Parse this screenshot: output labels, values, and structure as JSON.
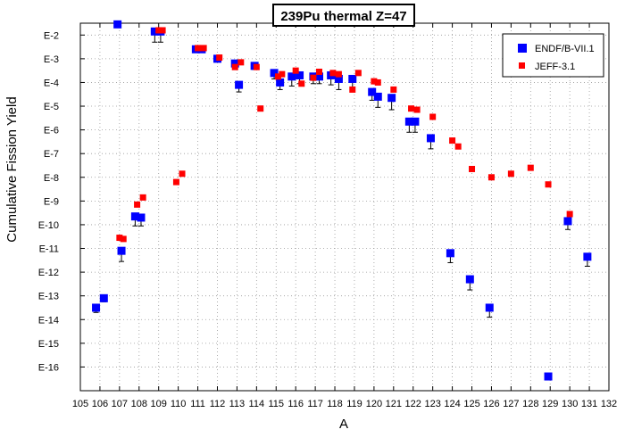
{
  "chart_data": {
    "type": "scatter",
    "title": "239Pu thermal Z=47",
    "xlabel": "A",
    "ylabel": "Cumulative Fission Yield",
    "x_range": [
      105,
      132
    ],
    "x_ticks": [
      105,
      106,
      107,
      108,
      109,
      110,
      111,
      112,
      113,
      114,
      115,
      116,
      117,
      118,
      119,
      120,
      121,
      122,
      123,
      124,
      125,
      126,
      127,
      128,
      129,
      130,
      131,
      132
    ],
    "y_scale": "log",
    "y_range_log10": [
      -17,
      -1.5
    ],
    "y_ticks": [
      {
        "exp": -2,
        "label": "E-2"
      },
      {
        "exp": -3,
        "label": "E-3"
      },
      {
        "exp": -4,
        "label": "E-4"
      },
      {
        "exp": -5,
        "label": "E-5"
      },
      {
        "exp": -6,
        "label": "E-6"
      },
      {
        "exp": -7,
        "label": "E-7"
      },
      {
        "exp": -8,
        "label": "E-8"
      },
      {
        "exp": -9,
        "label": "E-9"
      },
      {
        "exp": -10,
        "label": "E-10"
      },
      {
        "exp": -11,
        "label": "E-11"
      },
      {
        "exp": -12,
        "label": "E-12"
      },
      {
        "exp": -13,
        "label": "E-13"
      },
      {
        "exp": -14,
        "label": "E-14"
      },
      {
        "exp": -15,
        "label": "E-15"
      },
      {
        "exp": -16,
        "label": "E-16"
      }
    ],
    "grid": "dotted",
    "legend_position": "top-right",
    "series": [
      {
        "name": "ENDF/B-VII.1",
        "color": "#0000ff",
        "marker": "square",
        "points": [
          {
            "a": 105.8,
            "log10y": -13.5,
            "err": 0.2
          },
          {
            "a": 106.2,
            "log10y": -13.1,
            "err": 0.15
          },
          {
            "a": 106.9,
            "log10y": -1.55,
            "err": 0
          },
          {
            "a": 107.1,
            "log10y": -11.1,
            "err": 0.45
          },
          {
            "a": 107.8,
            "log10y": -9.65,
            "err": 0.4
          },
          {
            "a": 108.1,
            "log10y": -9.7,
            "err": 0.35
          },
          {
            "a": 108.8,
            "log10y": -1.85,
            "err": 0.45
          },
          {
            "a": 109.1,
            "log10y": -1.85,
            "err": 0.45
          },
          {
            "a": 110.9,
            "log10y": -2.6,
            "err": 0.1
          },
          {
            "a": 111.2,
            "log10y": -2.6,
            "err": 0.1
          },
          {
            "a": 112.0,
            "log10y": -3.0,
            "err": 0.1
          },
          {
            "a": 112.9,
            "log10y": -3.2,
            "err": 0.2
          },
          {
            "a": 113.1,
            "log10y": -4.1,
            "err": 0.3
          },
          {
            "a": 113.9,
            "log10y": -3.3,
            "err": 0.15
          },
          {
            "a": 114.9,
            "log10y": -3.6,
            "err": 0.25
          },
          {
            "a": 115.2,
            "log10y": -4.0,
            "err": 0.3
          },
          {
            "a": 115.8,
            "log10y": -3.75,
            "err": 0.4
          },
          {
            "a": 116.2,
            "log10y": -3.7,
            "err": 0.35
          },
          {
            "a": 116.9,
            "log10y": -3.75,
            "err": 0.3
          },
          {
            "a": 117.2,
            "log10y": -3.75,
            "err": 0.3
          },
          {
            "a": 117.8,
            "log10y": -3.7,
            "err": 0.4
          },
          {
            "a": 118.2,
            "log10y": -3.85,
            "err": 0.45
          },
          {
            "a": 118.9,
            "log10y": -3.85,
            "err": 0.45
          },
          {
            "a": 119.9,
            "log10y": -4.4,
            "err": 0.35
          },
          {
            "a": 120.2,
            "log10y": -4.6,
            "err": 0.45
          },
          {
            "a": 120.9,
            "log10y": -4.65,
            "err": 0.5
          },
          {
            "a": 121.8,
            "log10y": -5.65,
            "err": 0.45
          },
          {
            "a": 122.1,
            "log10y": -5.65,
            "err": 0.45
          },
          {
            "a": 122.9,
            "log10y": -6.35,
            "err": 0.45
          },
          {
            "a": 123.9,
            "log10y": -11.2,
            "err": 0.4
          },
          {
            "a": 124.9,
            "log10y": -12.3,
            "err": 0.45
          },
          {
            "a": 125.9,
            "log10y": -13.5,
            "err": 0.4
          },
          {
            "a": 128.9,
            "log10y": -16.4,
            "err": 0
          },
          {
            "a": 129.9,
            "log10y": -9.85,
            "err": 0.35
          },
          {
            "a": 130.9,
            "log10y": -11.35,
            "err": 0.4
          }
        ]
      },
      {
        "name": "JEFF-3.1",
        "color": "#ff0000",
        "marker": "square",
        "points": [
          {
            "a": 107.0,
            "log10y": -10.55
          },
          {
            "a": 107.2,
            "log10y": -10.6
          },
          {
            "a": 107.9,
            "log10y": -9.15
          },
          {
            "a": 108.2,
            "log10y": -8.85
          },
          {
            "a": 109.0,
            "log10y": -1.8
          },
          {
            "a": 109.2,
            "log10y": -1.8
          },
          {
            "a": 109.9,
            "log10y": -8.2
          },
          {
            "a": 110.2,
            "log10y": -7.85
          },
          {
            "a": 111.0,
            "log10y": -2.55
          },
          {
            "a": 111.3,
            "log10y": -2.55
          },
          {
            "a": 112.1,
            "log10y": -2.95
          },
          {
            "a": 112.9,
            "log10y": -3.35
          },
          {
            "a": 113.2,
            "log10y": -3.15
          },
          {
            "a": 114.0,
            "log10y": -3.35
          },
          {
            "a": 114.2,
            "log10y": -5.1
          },
          {
            "a": 115.1,
            "log10y": -3.75
          },
          {
            "a": 115.3,
            "log10y": -3.65
          },
          {
            "a": 116.0,
            "log10y": -3.5
          },
          {
            "a": 116.3,
            "log10y": -4.05
          },
          {
            "a": 116.9,
            "log10y": -3.8
          },
          {
            "a": 117.2,
            "log10y": -3.55
          },
          {
            "a": 117.9,
            "log10y": -3.6
          },
          {
            "a": 118.2,
            "log10y": -3.65
          },
          {
            "a": 118.9,
            "log10y": -4.3
          },
          {
            "a": 119.2,
            "log10y": -3.6
          },
          {
            "a": 120.0,
            "log10y": -3.95
          },
          {
            "a": 120.2,
            "log10y": -4.0
          },
          {
            "a": 121.0,
            "log10y": -4.3
          },
          {
            "a": 121.9,
            "log10y": -5.1
          },
          {
            "a": 122.2,
            "log10y": -5.15
          },
          {
            "a": 123.0,
            "log10y": -5.45
          },
          {
            "a": 124.0,
            "log10y": -6.45
          },
          {
            "a": 124.3,
            "log10y": -6.7
          },
          {
            "a": 125.0,
            "log10y": -7.65
          },
          {
            "a": 126.0,
            "log10y": -8.0
          },
          {
            "a": 127.0,
            "log10y": -7.85
          },
          {
            "a": 128.0,
            "log10y": -7.6
          },
          {
            "a": 128.9,
            "log10y": -8.3
          },
          {
            "a": 130.0,
            "log10y": -9.55
          }
        ]
      }
    ]
  }
}
